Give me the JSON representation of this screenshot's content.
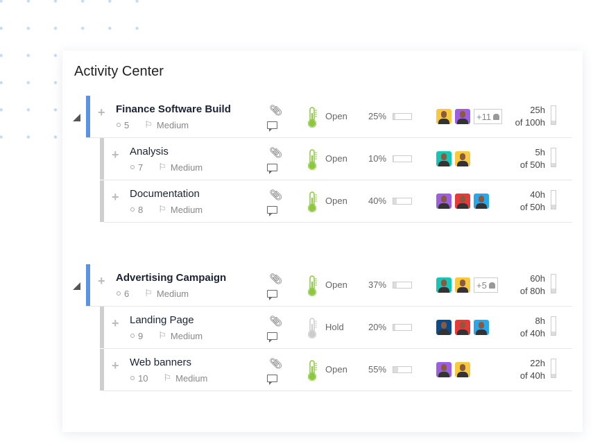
{
  "title": "Activity Center",
  "colors": {
    "group_bar": "#5b93e0",
    "child_bar": "#cfcfcf",
    "open": "#8dc63f",
    "hold": "#cccccc"
  },
  "groups": [
    {
      "name": "Finance Software Build",
      "id": "5",
      "priority": "Medium",
      "status": "Open",
      "progress": "25%",
      "progress_value": 25,
      "avatars": [
        "#f8c93e",
        "#9b5fe0"
      ],
      "more": "+11",
      "hours": "25h",
      "of": "of 100h",
      "hours_fraction": 0.25,
      "children": [
        {
          "name": "Analysis",
          "id": "7",
          "priority": "Medium",
          "status": "Open",
          "progress": "10%",
          "progress_value": 10,
          "avatars": [
            "#19c3b5",
            "#f8c93e"
          ],
          "hours": "5h",
          "of": "of 50h",
          "hours_fraction": 0.1
        },
        {
          "name": "Documentation",
          "id": "8",
          "priority": "Medium",
          "status": "Open",
          "progress": "40%",
          "progress_value": 40,
          "avatars": [
            "#9b5fe0",
            "#e63a3a",
            "#29a6ec"
          ],
          "hours": "40h",
          "of": "of 50h",
          "hours_fraction": 0.8
        }
      ]
    },
    {
      "name": "Advertising Campaign",
      "id": "6",
      "priority": "Medium",
      "status": "Open",
      "progress": "37%",
      "progress_value": 37,
      "avatars": [
        "#19c3b5",
        "#f8c93e"
      ],
      "more": "+5",
      "hours": "60h",
      "of": "of 80h",
      "hours_fraction": 0.75,
      "children": [
        {
          "name": "Landing Page",
          "id": "9",
          "priority": "Medium",
          "status": "Hold",
          "progress": "20%",
          "progress_value": 20,
          "avatars": [
            "#0d4a8a",
            "#e63a3a",
            "#29a6ec"
          ],
          "hours": "8h",
          "of": "of 40h",
          "hours_fraction": 0.2
        },
        {
          "name": "Web banners",
          "id": "10",
          "priority": "Medium",
          "status": "Open",
          "progress": "55%",
          "progress_value": 55,
          "avatars": [
            "#9b5fe0",
            "#f8c93e"
          ],
          "hours": "22h",
          "of": "of 40h",
          "hours_fraction": 0.55
        }
      ]
    }
  ]
}
